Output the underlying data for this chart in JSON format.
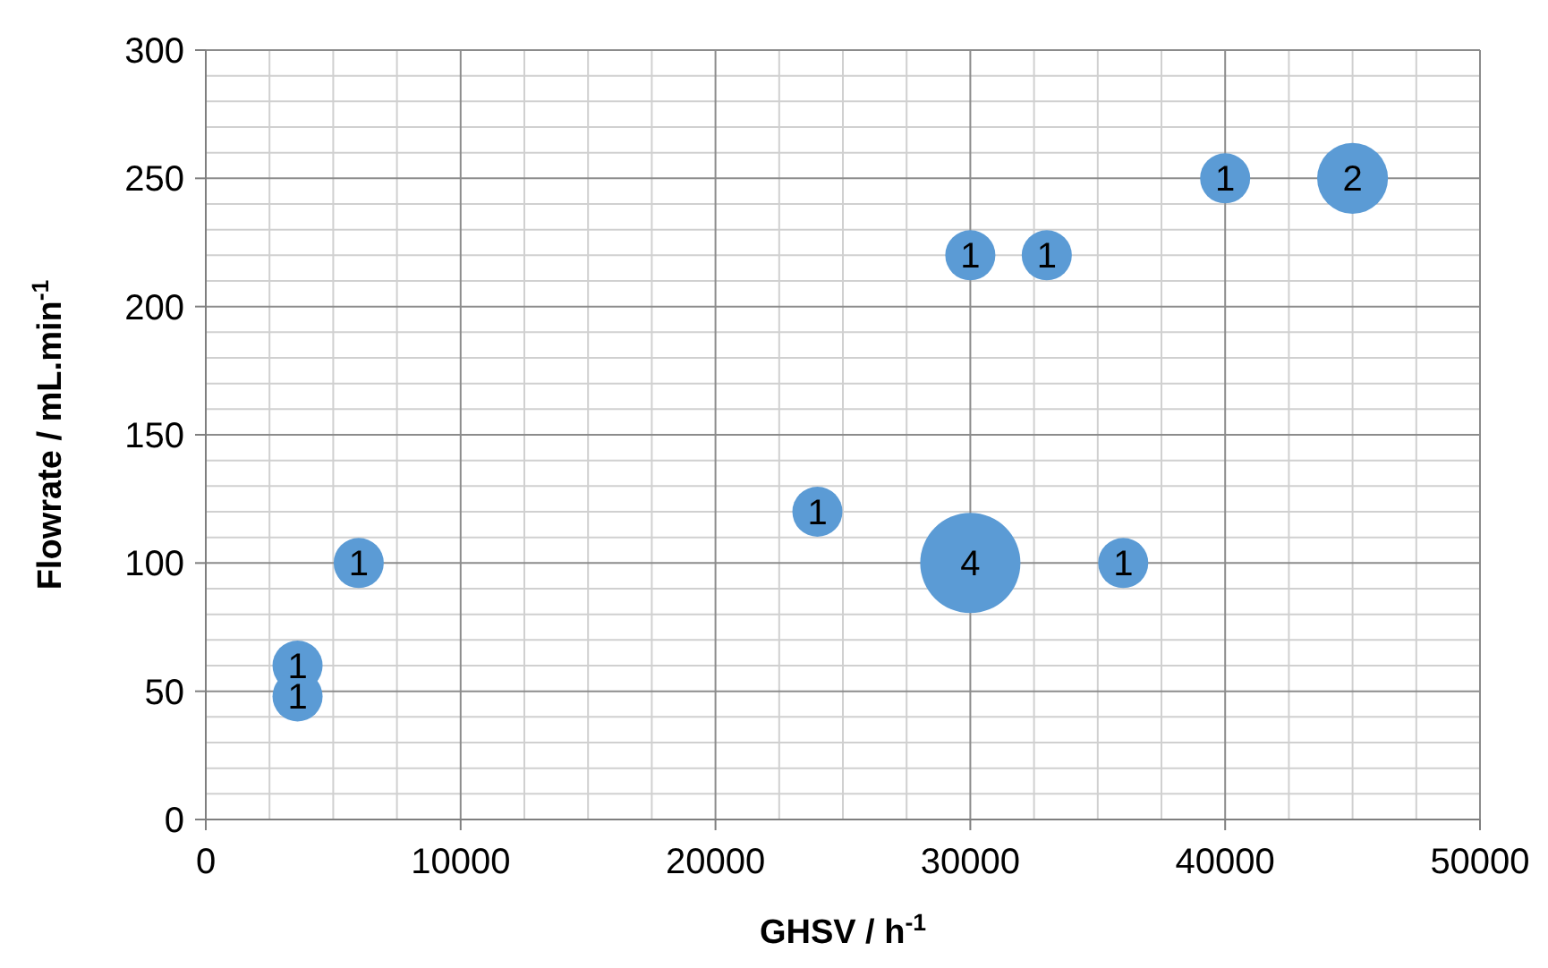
{
  "chart_data": {
    "type": "bubble",
    "xlabel": "GHSV / h$^{-1}$",
    "ylabel": "Flowrate / mL.min$^{-1}$",
    "x": [
      3600,
      3600,
      6000,
      24000,
      30000,
      30000,
      33000,
      36000,
      40000,
      45000
    ],
    "values": [
      60,
      48,
      100,
      120,
      100,
      220,
      220,
      100,
      250,
      250
    ],
    "sizes": [
      0.25,
      0.25,
      0.25,
      0.25,
      1,
      0.25,
      0.25,
      0.25,
      0.25,
      0.5
    ],
    "color": "#5b9bd5",
    "xlim": [
      0,
      50000
    ],
    "xticks": [
      0,
      10000,
      20000,
      30000,
      40000,
      50000
    ],
    "ylim": [
      0,
      300
    ],
    "yticks": [
      0,
      50,
      100,
      150,
      200,
      250,
      300
    ],
    "annotations": [
      {
        "text": "1",
        "x": 3600,
        "y": 60
      },
      {
        "text": "1",
        "x": 3600,
        "y": 48
      },
      {
        "text": "1",
        "x": 6000,
        "y": 100
      },
      {
        "text": "1",
        "x": 24000,
        "y": 120
      },
      {
        "text": "4",
        "x": 30000,
        "y": 100
      },
      {
        "text": "1",
        "x": 30000,
        "y": 220
      },
      {
        "text": "1",
        "x": 33000,
        "y": 220
      },
      {
        "text": "1",
        "x": 36000,
        "y": 100
      },
      {
        "text": "1",
        "x": 40000,
        "y": 250
      },
      {
        "text": "2",
        "x": 45000,
        "y": 250
      }
    ],
    "grid": true
  }
}
